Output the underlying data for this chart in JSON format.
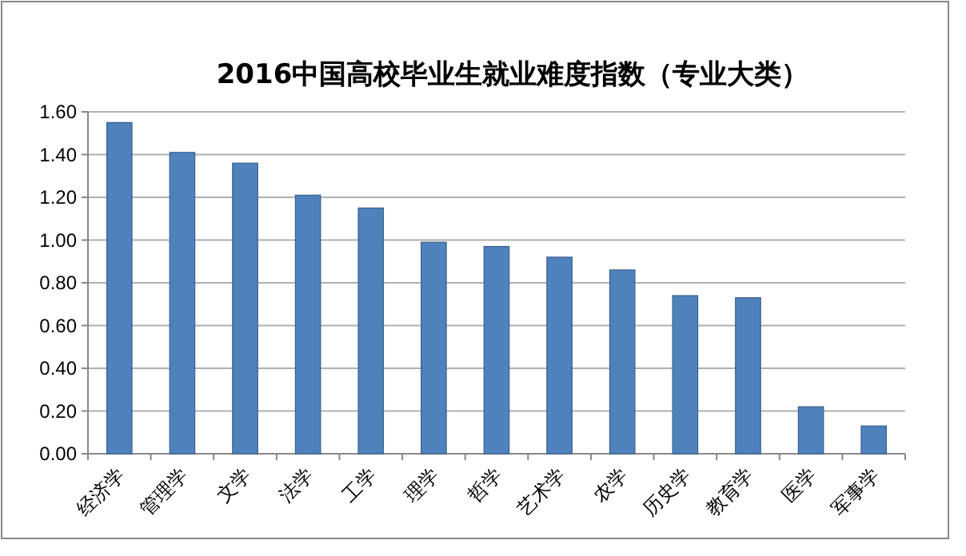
{
  "chart_data": {
    "type": "bar",
    "title": "2016中国高校毕业生就业难度指数（专业大类）",
    "categories": [
      "经济学",
      "管理学",
      "文学",
      "法学",
      "工学",
      "理学",
      "哲学",
      "艺术学",
      "农学",
      "历史学",
      "教育学",
      "医学",
      "军事学"
    ],
    "values": [
      1.55,
      1.41,
      1.36,
      1.21,
      1.15,
      0.99,
      0.97,
      0.92,
      0.86,
      0.74,
      0.73,
      0.22,
      0.13
    ],
    "color": "#4f81bd",
    "ylim": [
      0,
      1.6
    ],
    "yticks": [
      {
        "value": 0,
        "label": "0.00"
      },
      {
        "value": 0.2,
        "label": "0.20"
      },
      {
        "value": 0.4,
        "label": "0.40"
      },
      {
        "value": 0.6,
        "label": "0.60"
      },
      {
        "value": 0.8,
        "label": "0.80"
      },
      {
        "value": 1,
        "label": "1.00"
      },
      {
        "value": 1.2,
        "label": "1.20"
      },
      {
        "value": 1.4,
        "label": "1.40"
      },
      {
        "value": 1.6,
        "label": "1.60"
      }
    ],
    "grid": "y"
  }
}
